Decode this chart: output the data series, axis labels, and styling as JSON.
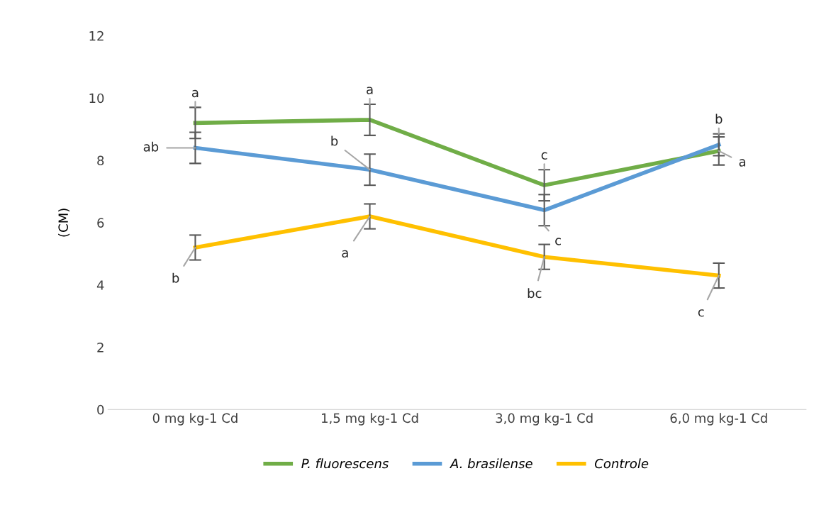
{
  "chart_data": {
    "type": "line",
    "categories": [
      "0 mg kg-1 Cd",
      "1,5 mg kg-1 Cd",
      "3,0 mg kg-1 Cd",
      "6,0 mg kg-1 Cd"
    ],
    "ylabel": "(CM)",
    "ylim": [
      0,
      12
    ],
    "yticks": [
      0,
      2,
      4,
      6,
      8,
      10,
      12
    ],
    "grid": false,
    "legend": "bottom",
    "marker": "none",
    "line_style": "solid",
    "series": [
      {
        "name": "P. fluorescens",
        "color": "#70ad47",
        "values": [
          9.2,
          9.3,
          7.2,
          8.3
        ],
        "errors": [
          0.5,
          0.5,
          0.5,
          0.45
        ]
      },
      {
        "name": "A. brasilense",
        "color": "#5b9bd5",
        "values": [
          8.4,
          7.7,
          6.4,
          8.5
        ],
        "errors": [
          0.5,
          0.5,
          0.5,
          0.35
        ]
      },
      {
        "name": "Controle",
        "color": "#ffc000",
        "values": [
          5.2,
          6.2,
          4.9,
          4.3
        ],
        "errors": [
          0.4,
          0.4,
          0.4,
          0.4
        ]
      }
    ],
    "annotations": [
      {
        "text": "a",
        "x": "0 mg kg-1 Cd",
        "y": 9.7
      },
      {
        "text": "ab",
        "x": "0 mg kg-1 Cd",
        "y": 8.4
      },
      {
        "text": "b",
        "x": "0 mg kg-1 Cd",
        "y": 5.2
      },
      {
        "text": "a",
        "x": "1,5 mg kg-1 Cd",
        "y": 9.8
      },
      {
        "text": "b",
        "x": "1,5 mg kg-1 Cd",
        "y": 7.7
      },
      {
        "text": "a",
        "x": "1,5 mg kg-1 Cd",
        "y": 6.2
      },
      {
        "text": "c",
        "x": "3,0 mg kg-1 Cd",
        "y": 7.7
      },
      {
        "text": "c",
        "x": "3,0 mg kg-1 Cd",
        "y": 5.9
      },
      {
        "text": "bc",
        "x": "3,0 mg kg-1 Cd",
        "y": 4.9
      },
      {
        "text": "b",
        "x": "6,0 mg kg-1 Cd",
        "y": 8.85
      },
      {
        "text": "a",
        "x": "6,0 mg kg-1 Cd",
        "y": 8.3
      },
      {
        "text": "c",
        "x": "6,0 mg kg-1 Cd",
        "y": 4.3
      }
    ]
  }
}
